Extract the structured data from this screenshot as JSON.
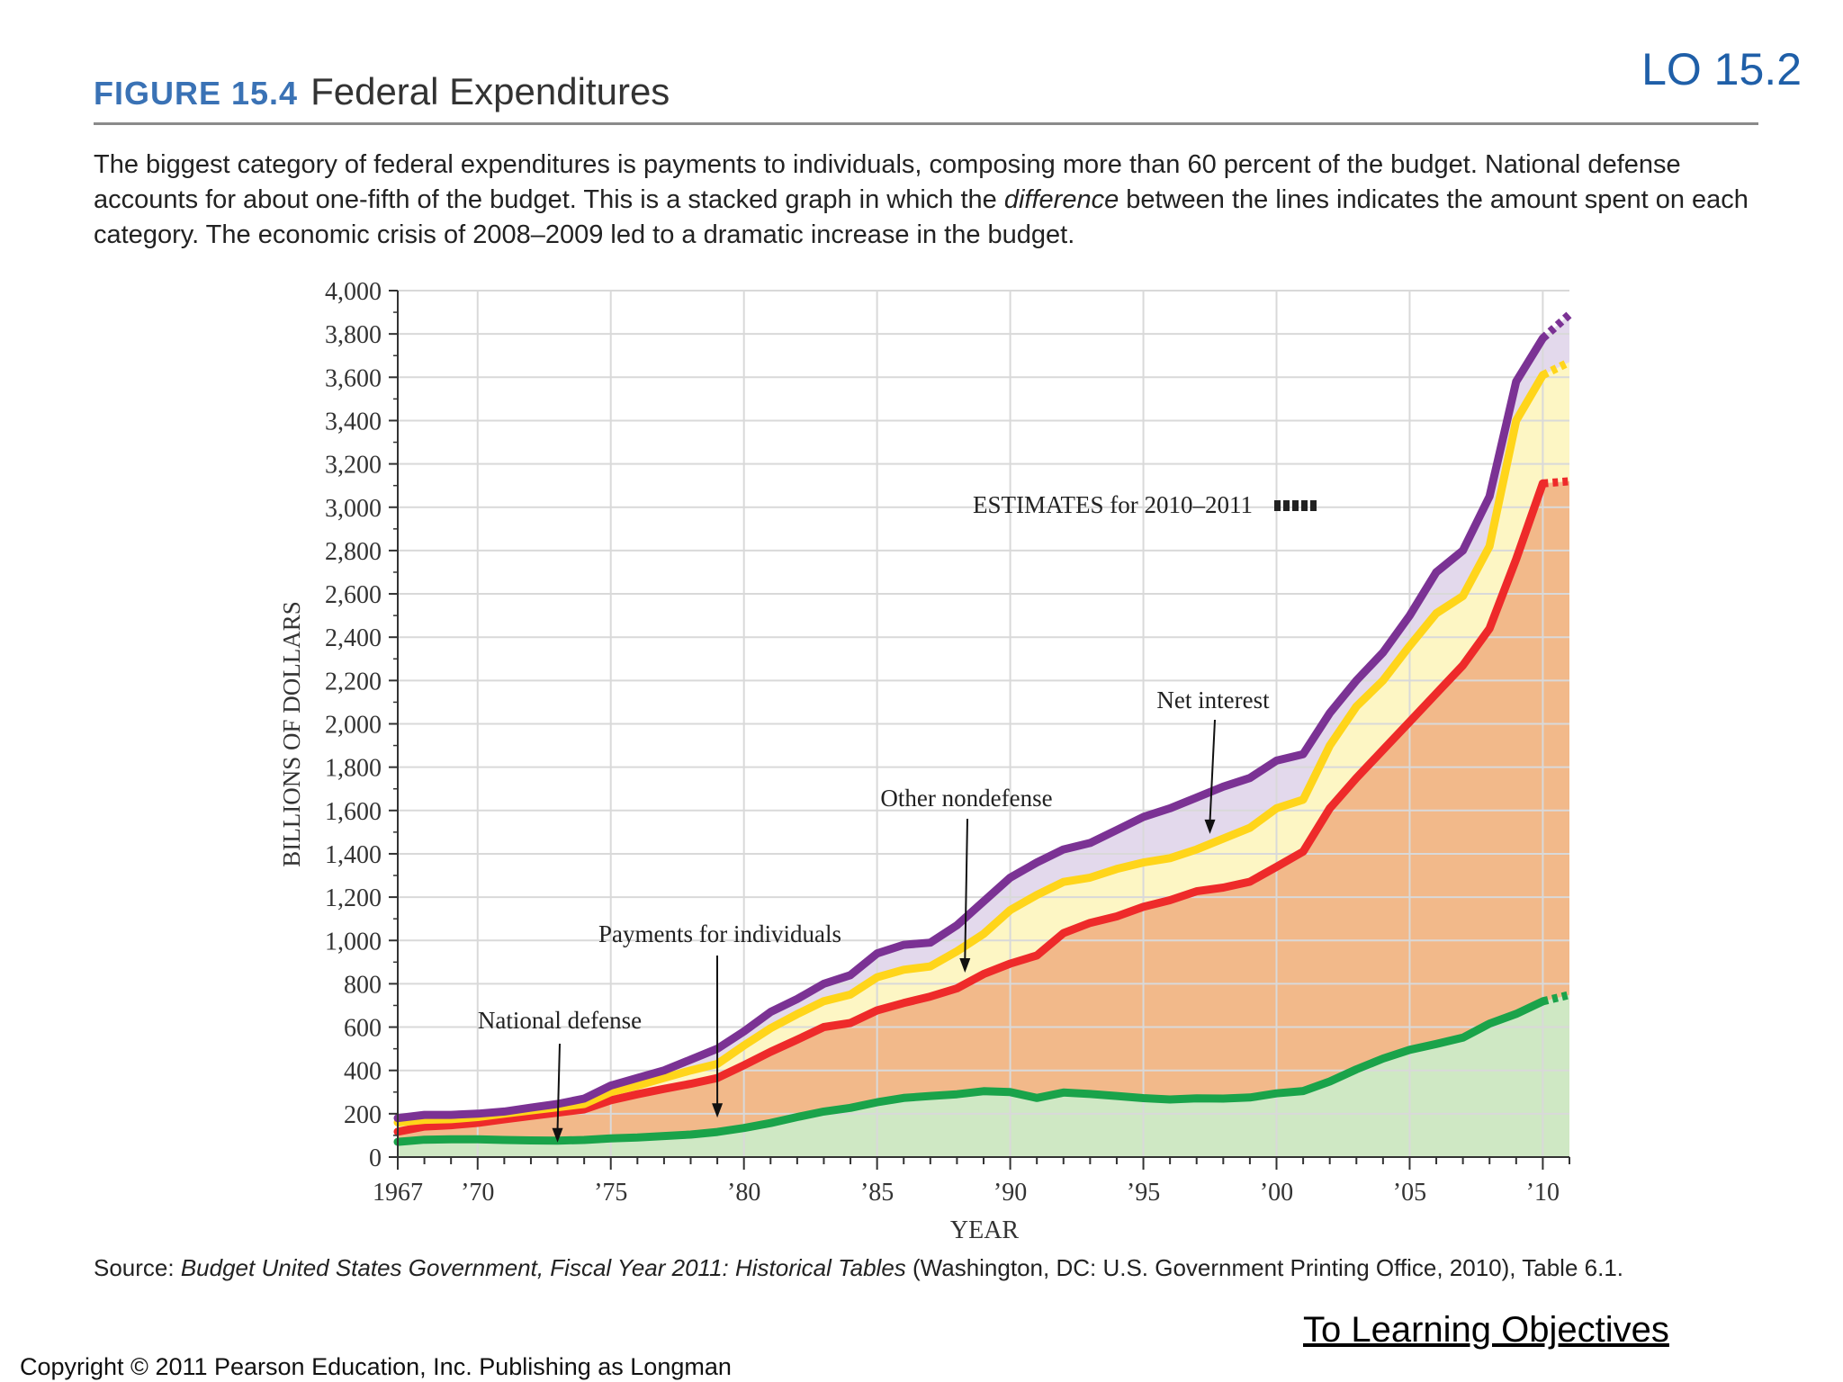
{
  "slide": {
    "lo_tag": "LO 15.2",
    "figure_number": "FIGURE 15.4",
    "figure_title": "Federal Expenditures",
    "caption_before_emphasis": "The biggest category of federal expenditures is payments to individuals, composing more than 60 percent of the budget. National defense accounts for about one-fifth of the budget. This is a stacked graph in which the ",
    "caption_emphasis": "difference",
    "caption_after_emphasis": " between the lines indicates the amount spent on each category. The economic crisis of 2008–2009 led to a dramatic increase in the budget.",
    "source_label": "Source: ",
    "source_title": "Budget United States Government, Fiscal Year 2011: Historical Tables",
    "source_rest": " (Washington, DC: U.S. Government Printing Office, 2010), Table 6.1.",
    "learning_link": "To Learning Objectives",
    "copyright": "Copyright © 2011 Pearson Education, Inc. Publishing as Longman"
  },
  "colors": {
    "defense_line": "#1aa34a",
    "defense_fill": "#cfe8c4",
    "payments_line": "#ee2a2a",
    "payments_fill": "#f2b98a",
    "other_line": "#ffd51a",
    "other_fill": "#fdf6c4",
    "interest_line": "#7b3294",
    "interest_fill": "#e3d9ec",
    "grid": "#d9d9d9",
    "axis": "#333333"
  },
  "chart_data": {
    "type": "area",
    "stacked": true,
    "title": "",
    "xlabel": "YEAR",
    "ylabel": "BILLIONS OF DOLLARS",
    "xlim": [
      1967,
      2011
    ],
    "ylim": [
      0,
      4000
    ],
    "y_ticks": [
      0,
      200,
      400,
      600,
      800,
      1000,
      1200,
      1400,
      1600,
      1800,
      2000,
      2200,
      2400,
      2600,
      2800,
      3000,
      3200,
      3400,
      3600,
      3800,
      4000
    ],
    "y_tick_labels": [
      "0",
      "200",
      "400",
      "600",
      "800",
      "1,000",
      "1,200",
      "1,400",
      "1,600",
      "1,800",
      "2,000",
      "2,200",
      "2,400",
      "2,600",
      "2,800",
      "3,000",
      "3,200",
      "3,400",
      "3,600",
      "3,800",
      "4,000"
    ],
    "x_ticks": [
      1967,
      1970,
      1975,
      1980,
      1985,
      1990,
      1995,
      2000,
      2005,
      2010
    ],
    "x_tick_labels": [
      "1967",
      "’70",
      "’75",
      "’80",
      "’85",
      "’90",
      "’95",
      "’00",
      "’05",
      "’10"
    ],
    "x": [
      1967,
      1968,
      1969,
      1970,
      1971,
      1972,
      1973,
      1974,
      1975,
      1976,
      1977,
      1978,
      1979,
      1980,
      1981,
      1982,
      1983,
      1984,
      1985,
      1986,
      1987,
      1988,
      1989,
      1990,
      1991,
      1992,
      1993,
      1994,
      1995,
      1996,
      1997,
      1998,
      1999,
      2000,
      2001,
      2002,
      2003,
      2004,
      2005,
      2006,
      2007,
      2008,
      2009,
      2010,
      2011
    ],
    "estimate_from": 2010,
    "estimates_label": "ESTIMATES for 2010–2011",
    "series": [
      {
        "name": "National defense",
        "role": "cumulative_top",
        "values": [
          70,
          80,
          82,
          82,
          79,
          77,
          76,
          79,
          86,
          90,
          97,
          104,
          116,
          134,
          157,
          185,
          210,
          227,
          253,
          273,
          282,
          290,
          304,
          300,
          273,
          298,
          291,
          282,
          272,
          266,
          271,
          270,
          275,
          294,
          305,
          349,
          405,
          455,
          495,
          522,
          551,
          616,
          661,
          719,
          749
        ]
      },
      {
        "name": "Payments for individuals",
        "role": "cumulative_top",
        "values": [
          117,
          141,
          147,
          158,
          174,
          190,
          205,
          220,
          262,
          290,
          315,
          338,
          365,
          424,
          486,
          542,
          600,
          619,
          677,
          711,
          741,
          779,
          845,
          893,
          931,
          1034,
          1081,
          1111,
          1155,
          1186,
          1227,
          1244,
          1271,
          1340,
          1410,
          1610,
          1750,
          1880,
          2010,
          2140,
          2270,
          2440,
          2760,
          3110,
          3120
        ]
      },
      {
        "name": "Other nondefense",
        "role": "cumulative_top",
        "values": [
          160,
          172,
          175,
          185,
          200,
          215,
          230,
          245,
          300,
          330,
          365,
          400,
          430,
          515,
          595,
          660,
          720,
          750,
          830,
          865,
          880,
          950,
          1030,
          1140,
          1210,
          1270,
          1290,
          1330,
          1360,
          1380,
          1420,
          1470,
          1520,
          1610,
          1650,
          1900,
          2080,
          2200,
          2360,
          2510,
          2590,
          2820,
          3400,
          3610,
          3670
        ]
      },
      {
        "name": "Net interest",
        "role": "cumulative_top",
        "values": [
          180,
          195,
          195,
          200,
          210,
          228,
          245,
          270,
          330,
          365,
          400,
          450,
          500,
          580,
          670,
          730,
          800,
          840,
          940,
          980,
          990,
          1070,
          1180,
          1290,
          1360,
          1420,
          1450,
          1510,
          1570,
          1610,
          1660,
          1710,
          1750,
          1830,
          1860,
          2050,
          2200,
          2330,
          2500,
          2700,
          2800,
          3050,
          3580,
          3780,
          3890
        ]
      }
    ],
    "annotations": [
      {
        "text": "National defense",
        "arrow_to": [
          1973,
          76
        ]
      },
      {
        "text": "Payments for individuals",
        "arrow_to": [
          1979,
          190
        ]
      },
      {
        "text": "Other nondefense",
        "arrow_to": [
          1988.3,
          860
        ]
      },
      {
        "text": "Net interest",
        "arrow_to": [
          1997.5,
          1500
        ]
      }
    ]
  }
}
